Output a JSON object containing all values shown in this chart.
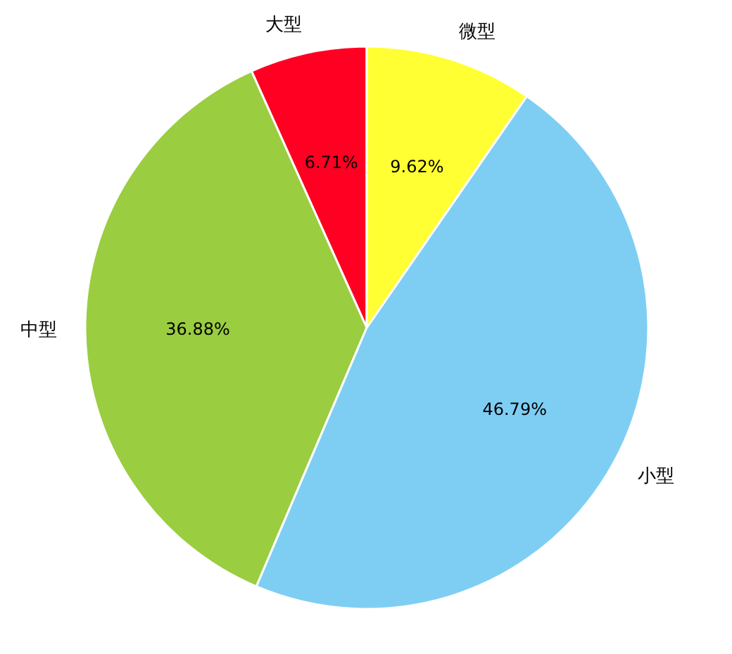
{
  "chart_data": {
    "type": "pie",
    "categories": [
      "大型",
      "中型",
      "小型",
      "微型"
    ],
    "values": [
      6.71,
      36.88,
      46.79,
      9.62
    ],
    "colors": [
      "#ff0022",
      "#9acd40",
      "#7ecef4",
      "#ffff33"
    ],
    "value_labels": [
      "6.71%",
      "36.88%",
      "46.79%",
      "9.62%"
    ]
  }
}
